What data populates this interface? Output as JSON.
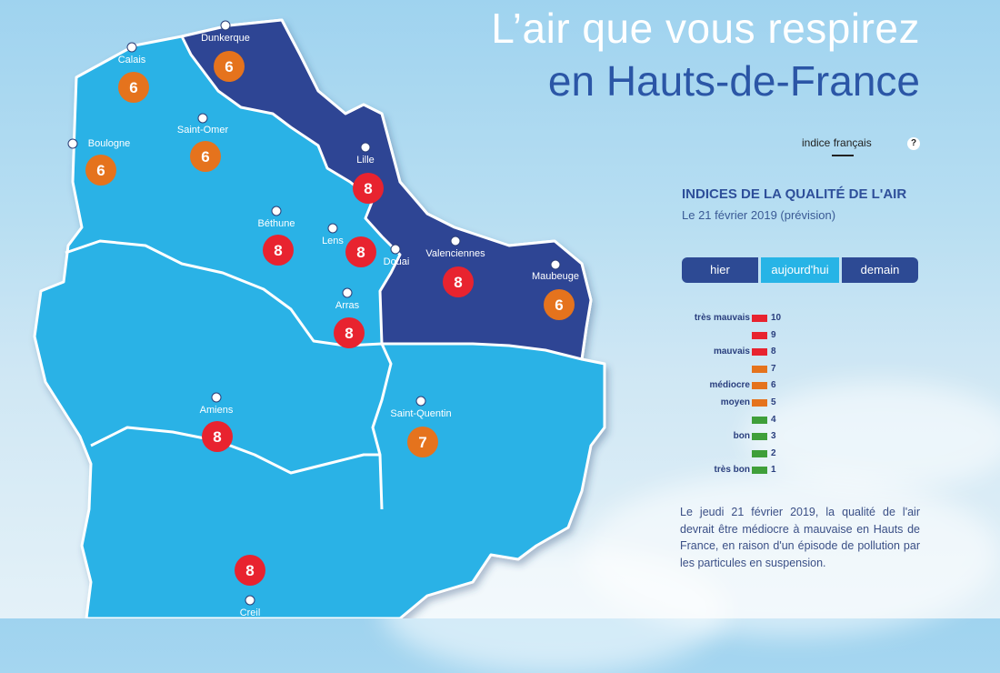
{
  "title": {
    "line1": "L’air que vous respirez",
    "line2": "en Hauts-de-France"
  },
  "indice": {
    "label": "indice français",
    "help": "?"
  },
  "section": {
    "title": "INDICES DE LA QUALITÉ DE L'AIR",
    "date": "Le 21 février 2019 (prévision)"
  },
  "tabs": [
    {
      "label": "hier"
    },
    {
      "label": "aujourd'hui"
    },
    {
      "label": "demain"
    }
  ],
  "legend": [
    {
      "value": "10",
      "label": "très mauvais",
      "color": "#e8232f"
    },
    {
      "value": "9",
      "label": "",
      "color": "#e8232f"
    },
    {
      "value": "8",
      "label": "mauvais",
      "color": "#e8232f"
    },
    {
      "value": "7",
      "label": "",
      "color": "#e5731d"
    },
    {
      "value": "6",
      "label": "médiocre",
      "color": "#e5731d"
    },
    {
      "value": "5",
      "label": "moyen",
      "color": "#e5731d"
    },
    {
      "value": "4",
      "label": "",
      "color": "#3f9f3a"
    },
    {
      "value": "3",
      "label": "bon",
      "color": "#3f9f3a"
    },
    {
      "value": "2",
      "label": "",
      "color": "#3f9f3a"
    },
    {
      "value": "1",
      "label": "très bon",
      "color": "#3f9f3a"
    }
  ],
  "description": "Le jeudi 21 février 2019, la qualité de l'air devrait être médiocre à mauvaise en Hauts de France, en raison d'un épisode de pollution par les particules en suspension.",
  "cities": [
    {
      "id": "dunkerque",
      "name": "Dunkerque",
      "index": "6",
      "color": "#e5731d"
    },
    {
      "id": "calais",
      "name": "Calais",
      "index": "6",
      "color": "#e5731d"
    },
    {
      "id": "boulogne",
      "name": "Boulogne",
      "index": "6",
      "color": "#e5731d"
    },
    {
      "id": "saint-omer",
      "name": "Saint-Omer",
      "index": "6",
      "color": "#e5731d"
    },
    {
      "id": "lille",
      "name": "Lille",
      "index": "8",
      "color": "#e8232f"
    },
    {
      "id": "bethune",
      "name": "Béthune",
      "index": "8",
      "color": "#e8232f"
    },
    {
      "id": "lens",
      "name": "Lens",
      "index": "8",
      "color": "#e8232f"
    },
    {
      "id": "douai",
      "name": "Douai",
      "index": "",
      "color": ""
    },
    {
      "id": "valenciennes",
      "name": "Valenciennes",
      "index": "8",
      "color": "#e8232f"
    },
    {
      "id": "maubeuge",
      "name": "Maubeuge",
      "index": "6",
      "color": "#e5731d"
    },
    {
      "id": "arras",
      "name": "Arras",
      "index": "8",
      "color": "#e8232f"
    },
    {
      "id": "amiens",
      "name": "Amiens",
      "index": "8",
      "color": "#e8232f"
    },
    {
      "id": "saint-quentin",
      "name": "Saint-Quentin",
      "index": "7",
      "color": "#e5731d"
    },
    {
      "id": "creil",
      "name": "Creil",
      "index": "8",
      "color": "#e8232f"
    }
  ],
  "colors": {
    "region_light": "#29b2e6",
    "region_dark": "#2f4594",
    "border": "#ffffff"
  }
}
